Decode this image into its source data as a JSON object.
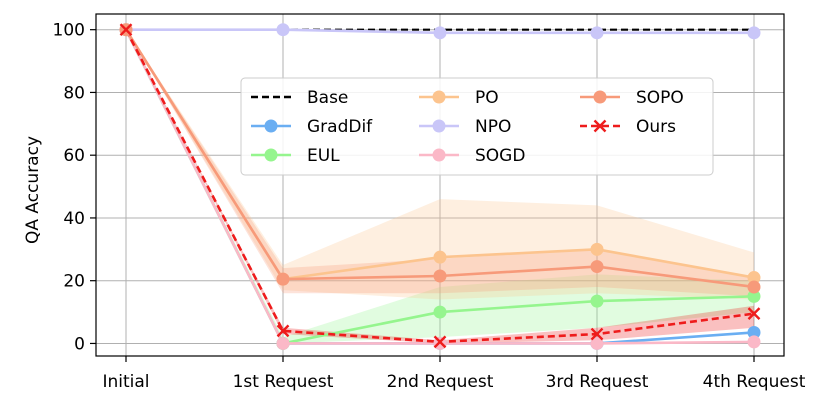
{
  "chart_data": {
    "type": "line",
    "title": "",
    "xlabel": "",
    "ylabel": "QA Accuracy",
    "categories": [
      "Initial",
      "1st Request",
      "2nd Request",
      "3rd Request",
      "4th Request"
    ],
    "ylim": [
      -4,
      105
    ],
    "yticks": [
      0,
      20,
      40,
      60,
      80,
      100
    ],
    "grid": true,
    "legend_position": "upper-center, 3 columns",
    "series": [
      {
        "name": "Base",
        "color": "#000000",
        "style": "dashed",
        "marker": "none",
        "values": [
          100,
          100,
          100,
          100,
          100
        ]
      },
      {
        "name": "GradDif",
        "color": "#6aaef2",
        "style": "solid",
        "marker": "circle",
        "values": [
          100,
          0,
          0,
          0,
          3.5
        ]
      },
      {
        "name": "EUL",
        "color": "#95f58e",
        "style": "solid",
        "marker": "circle",
        "values": [
          100,
          0,
          10,
          13.5,
          15
        ],
        "band_lower": [
          100,
          0,
          2,
          5,
          10
        ],
        "band_upper": [
          100,
          2,
          18,
          22,
          20
        ]
      },
      {
        "name": "PO",
        "color": "#fcc48e",
        "style": "solid",
        "marker": "circle",
        "values": [
          100,
          20.5,
          27.5,
          30,
          21
        ],
        "band_lower": [
          100,
          17,
          14,
          16,
          14
        ],
        "band_upper": [
          100,
          25,
          46,
          44,
          29
        ]
      },
      {
        "name": "NPO",
        "color": "#c9c6f8",
        "style": "solid",
        "marker": "circle",
        "values": [
          100,
          100,
          99,
          99,
          99
        ]
      },
      {
        "name": "SOGD",
        "color": "#fbb8c7",
        "style": "solid",
        "marker": "circle",
        "values": [
          100,
          0,
          0,
          0,
          0.5
        ]
      },
      {
        "name": "SOPO",
        "color": "#f79a7a",
        "style": "solid",
        "marker": "circle",
        "values": [
          100,
          20.5,
          21.5,
          24.5,
          18
        ],
        "band_lower": [
          100,
          16,
          16,
          18,
          15
        ],
        "band_upper": [
          100,
          24,
          27,
          30,
          21
        ]
      },
      {
        "name": "Ours",
        "color": "#ee1c1c",
        "style": "dashed",
        "marker": "x",
        "values": [
          100,
          4,
          0.5,
          3,
          9.5
        ],
        "band_lower": [
          100,
          3,
          0,
          1,
          5
        ],
        "band_upper": [
          100,
          5,
          1,
          5,
          12
        ]
      }
    ]
  }
}
